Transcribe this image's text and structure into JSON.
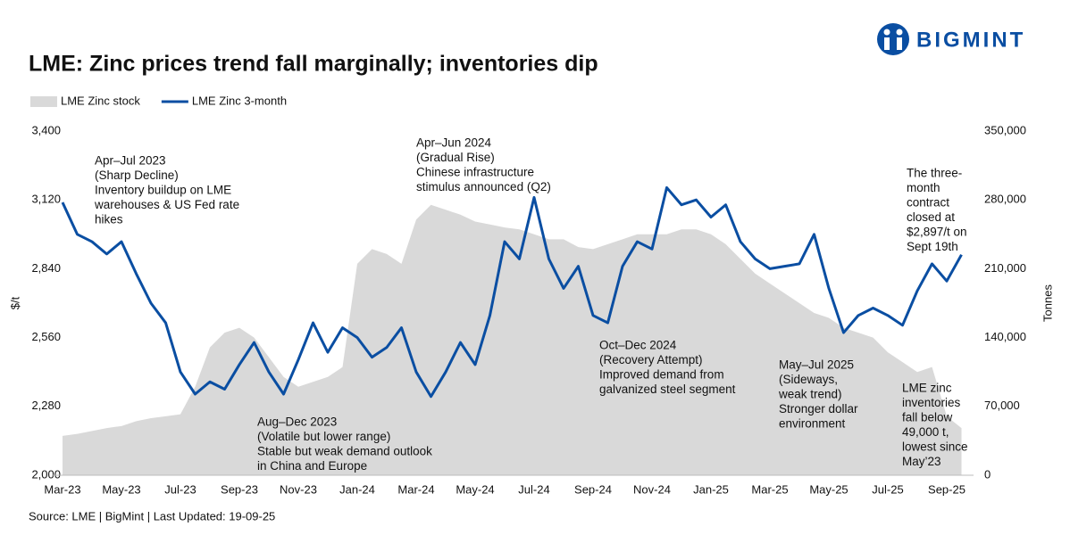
{
  "brand": "BIGMINT",
  "chart_data": {
    "type": "area-line",
    "title": "LME: Zinc prices trend fall marginally; inventories dip",
    "source": "Source: LME | BigMint | Last Updated: 19-09-25",
    "ylabel": "$/t",
    "y2label": "Tonnes",
    "categories": [
      "Mar-23",
      null,
      null,
      null,
      "May-23",
      null,
      null,
      null,
      "Jul-23",
      null,
      null,
      null,
      "Sep-23",
      null,
      null,
      null,
      "Nov-23",
      null,
      null,
      null,
      "Jan-24",
      null,
      null,
      null,
      "Mar-24",
      null,
      null,
      null,
      "May-24",
      null,
      null,
      null,
      "Jul-24",
      null,
      null,
      null,
      "Sep-24",
      null,
      null,
      null,
      "Nov-24",
      null,
      null,
      null,
      "Jan-25",
      null,
      null,
      null,
      "Mar-25",
      null,
      null,
      null,
      "May-25",
      null,
      null,
      null,
      "Jul-25",
      null,
      null,
      null,
      "Sep-25",
      null
    ],
    "series": [
      {
        "name": "LME Zinc stock",
        "type": "area",
        "axis": "y2",
        "color": "#d9d9d9",
        "values": [
          40000,
          42000,
          45000,
          48000,
          50000,
          55000,
          58000,
          60000,
          62000,
          90000,
          130000,
          145000,
          150000,
          140000,
          120000,
          100000,
          90000,
          95000,
          100000,
          110000,
          215000,
          230000,
          225000,
          215000,
          260000,
          275000,
          270000,
          265000,
          258000,
          255000,
          252000,
          250000,
          245000,
          240000,
          240000,
          232000,
          230000,
          235000,
          240000,
          245000,
          245000,
          245000,
          250000,
          250000,
          245000,
          235000,
          220000,
          205000,
          195000,
          185000,
          175000,
          165000,
          160000,
          150000,
          145000,
          140000,
          125000,
          115000,
          105000,
          110000,
          60000,
          48000
        ]
      },
      {
        "name": "LME Zinc 3-month",
        "type": "line",
        "color": "#0a4ea2",
        "values": [
          3110,
          2980,
          2950,
          2900,
          2950,
          2820,
          2700,
          2620,
          2420,
          2330,
          2380,
          2350,
          2450,
          2540,
          2420,
          2330,
          2470,
          2620,
          2500,
          2600,
          2560,
          2480,
          2520,
          2600,
          2420,
          2320,
          2420,
          2540,
          2450,
          2650,
          2950,
          2880,
          3130,
          2880,
          2760,
          2850,
          2650,
          2620,
          2850,
          2950,
          2920,
          3170,
          3100,
          3120,
          3050,
          3100,
          2950,
          2880,
          2840,
          2850,
          2860,
          2980,
          2760,
          2580,
          2650,
          2680,
          2650,
          2610,
          2750,
          2860,
          2790,
          2897
        ]
      }
    ],
    "ylim": [
      2000,
      3400
    ],
    "yticks": [
      {
        "value": 2000,
        "label": "2,000"
      },
      {
        "value": 2280,
        "label": "2,280"
      },
      {
        "value": 2560,
        "label": "2,560"
      },
      {
        "value": 2840,
        "label": "2,840"
      },
      {
        "value": 3120,
        "label": "3,120"
      },
      {
        "value": 3400,
        "label": "3,400"
      }
    ],
    "y2lim": [
      0,
      350000
    ],
    "y2ticks": [
      0,
      {
        "value": 70000,
        "label": "70,000"
      },
      {
        "value": 140000,
        "label": "140,000"
      },
      {
        "value": 210000,
        "label": "210,000"
      },
      {
        "value": 280000,
        "label": "280,000"
      },
      {
        "value": 350000,
        "label": "350,000"
      }
    ],
    "annotations": [
      [
        "Apr–Jul 2023",
        " (Sharp Decline)",
        "Inventory buildup on LME",
        "warehouses & US Fed rate",
        "hikes"
      ],
      [
        "Aug–Dec 2023",
        "(Volatile but lower range)",
        "Stable but weak demand outlook",
        "in China and Europe"
      ],
      [
        "Apr–Jun 2024",
        "(Gradual Rise)",
        "Chinese infrastructure",
        "stimulus announced (Q2)"
      ],
      [
        "Oct–Dec 2024",
        "(Recovery Attempt)",
        "Improved demand from",
        "galvanized steel segment"
      ],
      [
        "May–Jul 2025",
        "(Sideways,",
        "weak trend)",
        "Stronger dollar",
        "environment"
      ],
      [
        "The three-",
        "month",
        "contract",
        "closed at",
        "$2,897/t on",
        "Sept 19th"
      ],
      [
        "LME zinc",
        "inventories",
        "fall below",
        "49,000 t,",
        "lowest since",
        "May’23"
      ]
    ]
  }
}
